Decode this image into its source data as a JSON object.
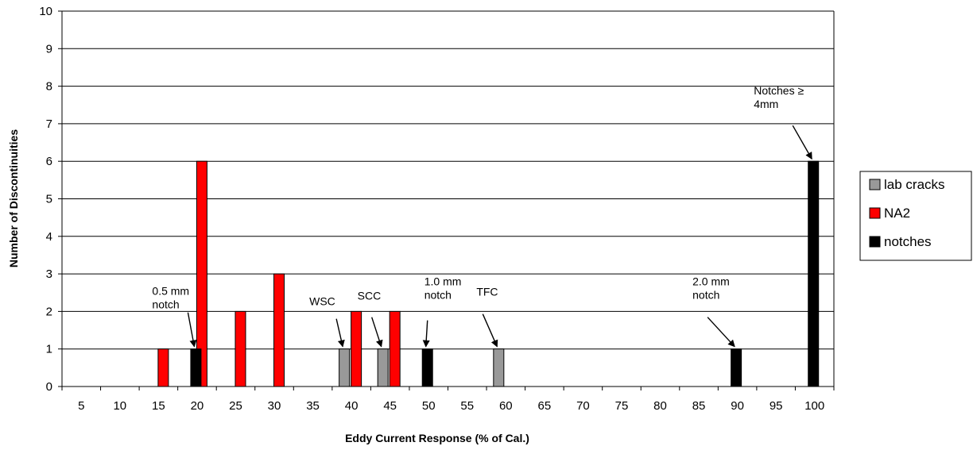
{
  "chart_data": {
    "type": "bar",
    "title": "",
    "xlabel": "Eddy Current Response (% of Cal.)",
    "ylabel": "Number of Discontinuities",
    "ylim": [
      0,
      10
    ],
    "yticks": [
      0,
      1,
      2,
      3,
      4,
      5,
      6,
      7,
      8,
      9,
      10
    ],
    "grid": "horizontal",
    "legend_position": "right",
    "categories": [
      "5",
      "10",
      "15",
      "20",
      "25",
      "30",
      "35",
      "40",
      "45",
      "50",
      "55",
      "60",
      "65",
      "70",
      "75",
      "80",
      "85",
      "90",
      "95",
      "100"
    ],
    "series": [
      {
        "name": "lab cracks",
        "color": "#999999",
        "values": [
          0,
          0,
          0,
          0,
          0,
          0,
          0,
          1,
          1,
          0,
          0,
          1,
          0,
          0,
          0,
          0,
          0,
          0,
          0,
          0
        ]
      },
      {
        "name": "NA2",
        "color": "#ff0000",
        "values": [
          0,
          0,
          1,
          6,
          2,
          3,
          0,
          2,
          2,
          0,
          0,
          0,
          0,
          0,
          0,
          0,
          0,
          0,
          0,
          0
        ]
      },
      {
        "name": "notches",
        "color": "#000000",
        "values": [
          0,
          0,
          0,
          1,
          0,
          0,
          0,
          0,
          0,
          1,
          0,
          0,
          0,
          0,
          0,
          0,
          0,
          1,
          0,
          6
        ]
      }
    ],
    "annotations": [
      {
        "lines": [
          "0.5 mm",
          "notch"
        ],
        "category": "20",
        "series": "notches"
      },
      {
        "lines": [
          "WSC"
        ],
        "category": "40",
        "series": "lab cracks"
      },
      {
        "lines": [
          "SCC"
        ],
        "category": "45",
        "series": "lab cracks"
      },
      {
        "lines": [
          "1.0 mm",
          "notch"
        ],
        "category": "50",
        "series": "notches"
      },
      {
        "lines": [
          "TFC"
        ],
        "category": "60",
        "series": "lab cracks"
      },
      {
        "lines": [
          "2.0 mm",
          "notch"
        ],
        "category": "90",
        "series": "notches"
      },
      {
        "lines": [
          "Notches ≥",
          "4mm"
        ],
        "category": "100",
        "series": "notches"
      }
    ]
  }
}
